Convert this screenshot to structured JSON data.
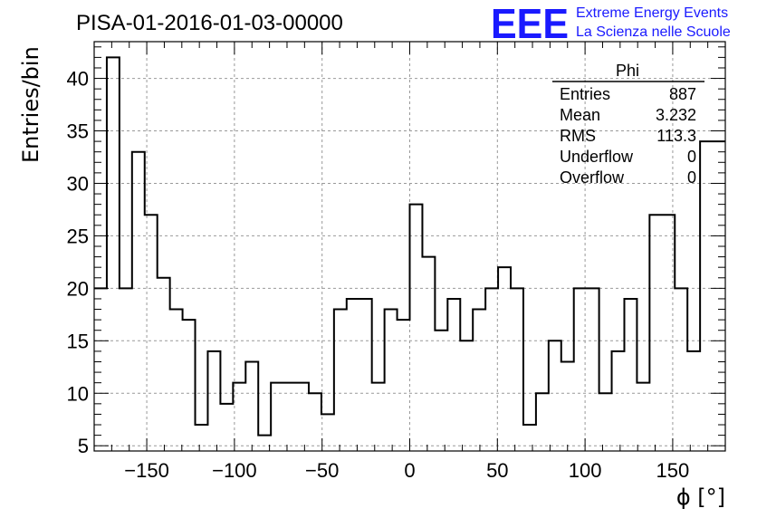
{
  "header": {
    "title": "PISA-01-2016-01-03-00000",
    "logo_mark": "EEE",
    "logo_line1": "Extreme Energy Events",
    "logo_line2": "La Scienza nelle Scuole"
  },
  "stats_box": {
    "name": "Phi",
    "rows": [
      {
        "label": "Entries",
        "value": "887"
      },
      {
        "label": "Mean",
        "value": "3.232"
      },
      {
        "label": "RMS",
        "value": "113.3"
      },
      {
        "label": "Underflow",
        "value": "0"
      },
      {
        "label": "Overflow",
        "value": "0"
      }
    ]
  },
  "chart_data": {
    "type": "histogram",
    "xlabel": "ϕ [°]",
    "ylabel": "Entries/bin",
    "xlim": [
      -180,
      180
    ],
    "ylim": [
      4.5,
      43.5
    ],
    "grid": true,
    "bin_edges_start": -180,
    "bin_width": 7.2,
    "values": [
      20,
      42,
      20,
      33,
      27,
      21,
      18,
      17,
      7,
      14,
      9,
      11,
      13,
      6,
      11,
      11,
      11,
      10,
      8,
      18,
      19,
      19,
      11,
      18,
      17,
      28,
      23,
      16,
      19,
      15,
      18,
      20,
      22,
      20,
      7,
      10,
      15,
      13,
      20,
      20,
      10,
      14,
      19,
      11,
      27,
      27,
      20,
      14,
      34,
      34
    ],
    "x_ticks": [
      -150,
      -100,
      -50,
      0,
      50,
      100,
      150
    ],
    "y_ticks": [
      5,
      10,
      15,
      20,
      25,
      30,
      35,
      40
    ],
    "x_tick_labels": [
      "−150",
      "−100",
      "−50",
      "0",
      "50",
      "100",
      "150"
    ],
    "y_tick_labels": [
      "5",
      "10",
      "15",
      "20",
      "25",
      "30",
      "35",
      "40"
    ]
  }
}
